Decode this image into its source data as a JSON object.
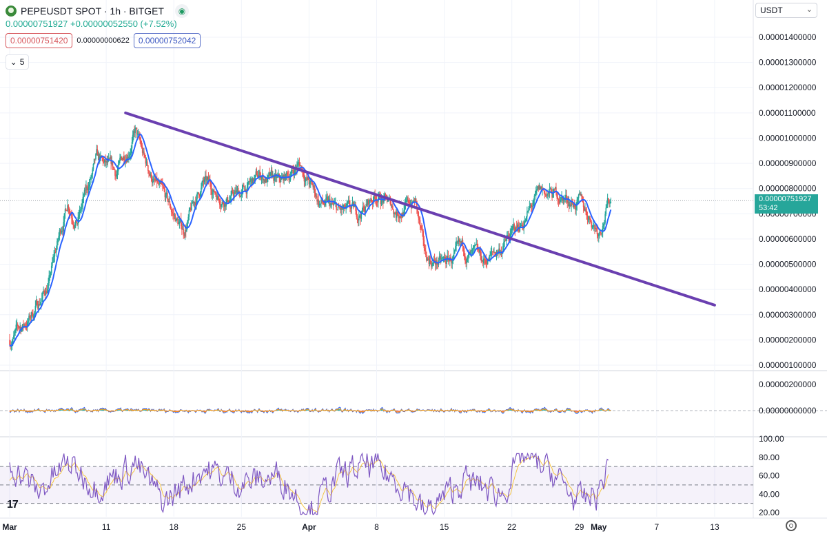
{
  "header": {
    "title": "PEPEUSDT SPOT · 1h · BITGET",
    "subline": "0.00000751927 +0.00000052550 (+7.52%)",
    "box_red": "0.00000751420",
    "box_mid": "0.00000000622",
    "box_blue": "0.00000752042",
    "collapse_count": "5",
    "currency": "USDT"
  },
  "last_price": {
    "value": "0.00000751927",
    "countdown": "53:42"
  },
  "colors": {
    "up": "#26a69a",
    "down": "#ef5350",
    "ma": "#2962ff",
    "trend": "#6a3fb0",
    "rsi": "#7e57c2",
    "rsi_ma": "#f5c542"
  },
  "chart_data": [
    {
      "type": "candlestick",
      "symbol": "PEPEUSDT",
      "interval": "1h",
      "y_tick_labels": [
        "0.00000100000",
        "0.00000200000",
        "0.00000300000",
        "0.00000400000",
        "0.00000500000",
        "0.00000600000",
        "0.00000700000",
        "0.00000800000",
        "0.00000900000",
        "0.00001000000",
        "0.00001100000",
        "0.00001200000",
        "0.00001300000",
        "0.00001400000"
      ],
      "ylim": [
        7.3e-07,
        1.45e-05
      ],
      "x_tick_labels": [
        "Mar",
        "11",
        "18",
        "25",
        "Apr",
        "8",
        "15",
        "22",
        "29",
        "May",
        "7",
        "13"
      ],
      "bold_x_ticks": [
        "Mar",
        "Apr",
        "May"
      ],
      "approx_close_series": [
        {
          "date": "2024-03-01",
          "value": 2e-06
        },
        {
          "date": "2024-03-03",
          "value": 2.8e-06
        },
        {
          "date": "2024-03-05",
          "value": 4.2e-06
        },
        {
          "date": "2024-03-07",
          "value": 7.5e-06
        },
        {
          "date": "2024-03-08",
          "value": 6.8e-06
        },
        {
          "date": "2024-03-10",
          "value": 9e-06
        },
        {
          "date": "2024-03-12",
          "value": 8.5e-06
        },
        {
          "date": "2024-03-14",
          "value": 1.03e-05
        },
        {
          "date": "2024-03-15",
          "value": 9e-06
        },
        {
          "date": "2024-03-17",
          "value": 7.5e-06
        },
        {
          "date": "2024-03-19",
          "value": 6.3e-06
        },
        {
          "date": "2024-03-21",
          "value": 8.2e-06
        },
        {
          "date": "2024-03-23",
          "value": 7.7e-06
        },
        {
          "date": "2024-03-25",
          "value": 7.8e-06
        },
        {
          "date": "2024-03-27",
          "value": 8.5e-06
        },
        {
          "date": "2024-03-29",
          "value": 8.1e-06
        },
        {
          "date": "2024-03-31",
          "value": 9e-06
        },
        {
          "date": "2024-04-02",
          "value": 7.5e-06
        },
        {
          "date": "2024-04-04",
          "value": 7e-06
        },
        {
          "date": "2024-04-06",
          "value": 6.9e-06
        },
        {
          "date": "2024-04-08",
          "value": 7.8e-06
        },
        {
          "date": "2024-04-10",
          "value": 7.1e-06
        },
        {
          "date": "2024-04-12",
          "value": 7.5e-06
        },
        {
          "date": "2024-04-13",
          "value": 5.2e-06
        },
        {
          "date": "2024-04-15",
          "value": 5e-06
        },
        {
          "date": "2024-04-17",
          "value": 5.4e-06
        },
        {
          "date": "2024-04-19",
          "value": 5e-06
        },
        {
          "date": "2024-04-21",
          "value": 5.7e-06
        },
        {
          "date": "2024-04-23",
          "value": 6.6e-06
        },
        {
          "date": "2024-04-25",
          "value": 7.8e-06
        },
        {
          "date": "2024-04-27",
          "value": 7.7e-06
        },
        {
          "date": "2024-04-29",
          "value": 7.4e-06
        },
        {
          "date": "2024-05-01",
          "value": 6.4e-06
        },
        {
          "date": "2024-05-02",
          "value": 7.5e-06
        }
      ],
      "trendline": [
        {
          "date": "2024-03-13",
          "value": 1.1e-05
        },
        {
          "date": "2024-05-13",
          "value": 3.38e-06
        }
      ]
    },
    {
      "type": "line",
      "indicator": "MACD",
      "y_tick_labels": [
        "0.00000200000",
        "0.00000000000"
      ],
      "ylim": [
        -1.2e-06,
        2.8e-06
      ]
    },
    {
      "type": "line",
      "indicator": "RSI",
      "y_tick_labels": [
        "100.00",
        "80.00",
        "60.00",
        "40.00",
        "20.00"
      ],
      "ylim": [
        15,
        102
      ],
      "bands": [
        30,
        50,
        70
      ],
      "approx_series": [
        {
          "date": "2024-03-01",
          "value": 75
        },
        {
          "date": "2024-03-04",
          "value": 42
        },
        {
          "date": "2024-03-07",
          "value": 74
        },
        {
          "date": "2024-03-10",
          "value": 48
        },
        {
          "date": "2024-03-14",
          "value": 73
        },
        {
          "date": "2024-03-17",
          "value": 30
        },
        {
          "date": "2024-03-21",
          "value": 68
        },
        {
          "date": "2024-03-25",
          "value": 52
        },
        {
          "date": "2024-03-29",
          "value": 60
        },
        {
          "date": "2024-04-01",
          "value": 22
        },
        {
          "date": "2024-04-04",
          "value": 58
        },
        {
          "date": "2024-04-07",
          "value": 72
        },
        {
          "date": "2024-04-11",
          "value": 50
        },
        {
          "date": "2024-04-13",
          "value": 18
        },
        {
          "date": "2024-04-17",
          "value": 55
        },
        {
          "date": "2024-04-21",
          "value": 40
        },
        {
          "date": "2024-04-23",
          "value": 82
        },
        {
          "date": "2024-04-26",
          "value": 65
        },
        {
          "date": "2024-04-29",
          "value": 30
        },
        {
          "date": "2024-05-01",
          "value": 42
        },
        {
          "date": "2024-05-02",
          "value": 73
        }
      ]
    }
  ]
}
